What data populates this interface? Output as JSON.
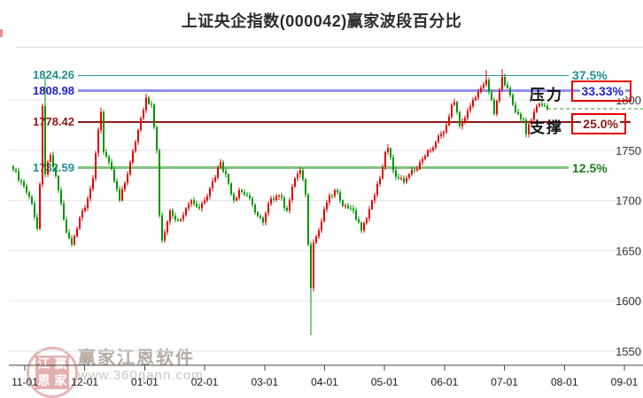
{
  "title": "上证央企指数(000042)赢家波段百分比",
  "levels": [
    {
      "name": "level-37-5",
      "price_label": "1824.26",
      "pct_label": "37.5%",
      "price": 1824.26,
      "text_color": "#1f8f8f",
      "pct_color": "#1f8f8f",
      "line_color": "#2a9a9a",
      "thickness": 1,
      "boxed": false
    },
    {
      "name": "level-33-33",
      "price_label": "1808.98",
      "pct_label": "33.33%",
      "price": 1808.98,
      "text_color": "#2323cf",
      "pct_color": "#2323cf",
      "line_color": "#9090ee",
      "thickness": 3,
      "boxed": true,
      "tag": "压力"
    },
    {
      "name": "level-25",
      "price_label": "1778.42",
      "pct_label": "25.0%",
      "price": 1778.42,
      "text_color": "#8b1a1a",
      "pct_color": "#8b1a1a",
      "line_color": "#8b1a1a",
      "thickness": 2,
      "boxed": true,
      "tag": "支撑"
    },
    {
      "name": "level-12-5",
      "price_label": "1732.59",
      "pct_label": "12.5%",
      "price": 1732.59,
      "text_color": "#1f8f8f",
      "pct_color": "#1f7a1f",
      "line_color": "#7fc47f",
      "thickness": 3,
      "boxed": false
    }
  ],
  "pressure_label": "压力",
  "support_label": "支撑",
  "watermark": {
    "brand": "赢家江恩软件",
    "url": "www.360gann.com",
    "seal_chars": [
      "江",
      "赢",
      "恩",
      "家"
    ]
  },
  "chart_data": {
    "type": "candlestick",
    "title": "上证央企指数(000042)赢家波段百分比",
    "x_tick_labels": [
      "11-01",
      "12-01",
      "01-01",
      "02-01",
      "03-01",
      "04-01",
      "05-01",
      "06-01",
      "07-01",
      "08-01",
      "09-01"
    ],
    "y_tick_values": [
      1800,
      1750,
      1700,
      1650,
      1600,
      1550
    ],
    "ylim": [
      1545,
      1835
    ],
    "grid": "horizontal",
    "up_color": "#e60000",
    "down_color": "#009500",
    "candle_count": 202,
    "dashed_line_price": 1791,
    "dashed_line_color": "#2aa02a",
    "level_prices": [
      1824.26,
      1808.98,
      1778.42,
      1732.59
    ],
    "level_percents": [
      37.5,
      33.33,
      25.0,
      12.5
    ],
    "anchors": [
      [
        0,
        1731
      ],
      [
        4,
        1714
      ],
      [
        7,
        1697
      ],
      [
        9,
        1672
      ],
      [
        10,
        1716
      ],
      [
        11,
        1794
      ],
      [
        12,
        1726
      ],
      [
        14,
        1745
      ],
      [
        17,
        1710
      ],
      [
        20,
        1668
      ],
      [
        22,
        1656
      ],
      [
        25,
        1683
      ],
      [
        28,
        1702
      ],
      [
        30,
        1722
      ],
      [
        32,
        1770
      ],
      [
        33,
        1788
      ],
      [
        34,
        1748
      ],
      [
        36,
        1738
      ],
      [
        40,
        1700
      ],
      [
        43,
        1726
      ],
      [
        46,
        1758
      ],
      [
        48,
        1782
      ],
      [
        50,
        1802
      ],
      [
        52,
        1795
      ],
      [
        54,
        1750
      ],
      [
        55,
        1685
      ],
      [
        56,
        1660
      ],
      [
        59,
        1690
      ],
      [
        62,
        1680
      ],
      [
        65,
        1692
      ],
      [
        67,
        1700
      ],
      [
        70,
        1692
      ],
      [
        74,
        1712
      ],
      [
        78,
        1738
      ],
      [
        80,
        1726
      ],
      [
        83,
        1700
      ],
      [
        85,
        1710
      ],
      [
        88,
        1705
      ],
      [
        91,
        1688
      ],
      [
        94,
        1678
      ],
      [
        97,
        1702
      ],
      [
        100,
        1705
      ],
      [
        103,
        1690
      ],
      [
        106,
        1722
      ],
      [
        108,
        1730
      ],
      [
        110,
        1706
      ],
      [
        111,
        1656
      ],
      [
        112,
        1613
      ],
      [
        113,
        1658
      ],
      [
        115,
        1670
      ],
      [
        118,
        1698
      ],
      [
        121,
        1710
      ],
      [
        123,
        1700
      ],
      [
        125,
        1695
      ],
      [
        127,
        1692
      ],
      [
        130,
        1678
      ],
      [
        131,
        1670
      ],
      [
        133,
        1682
      ],
      [
        135,
        1700
      ],
      [
        138,
        1722
      ],
      [
        140,
        1748
      ],
      [
        141,
        1752
      ],
      [
        143,
        1730
      ],
      [
        145,
        1722
      ],
      [
        147,
        1718
      ],
      [
        149,
        1726
      ],
      [
        151,
        1730
      ],
      [
        153,
        1738
      ],
      [
        155,
        1744
      ],
      [
        157,
        1750
      ],
      [
        159,
        1758
      ],
      [
        161,
        1766
      ],
      [
        163,
        1775
      ],
      [
        165,
        1795
      ],
      [
        166,
        1798
      ],
      [
        168,
        1774
      ],
      [
        170,
        1782
      ],
      [
        172,
        1794
      ],
      [
        174,
        1802
      ],
      [
        176,
        1812
      ],
      [
        178,
        1820
      ],
      [
        179,
        1808
      ],
      [
        181,
        1786
      ],
      [
        183,
        1810
      ],
      [
        184,
        1823
      ],
      [
        186,
        1812
      ],
      [
        188,
        1795
      ],
      [
        190,
        1786
      ],
      [
        192,
        1780
      ],
      [
        193,
        1766
      ],
      [
        195,
        1780
      ],
      [
        196,
        1788
      ],
      [
        198,
        1796
      ],
      [
        200,
        1794
      ],
      [
        201,
        1791
      ]
    ],
    "wick_overrides": {
      "12": {
        "high": 1822
      },
      "33": {
        "high": 1792
      },
      "50": {
        "high": 1806
      },
      "112": {
        "low": 1566
      },
      "141": {
        "high": 1756
      },
      "178": {
        "high": 1830
      },
      "184": {
        "high": 1831
      }
    }
  }
}
